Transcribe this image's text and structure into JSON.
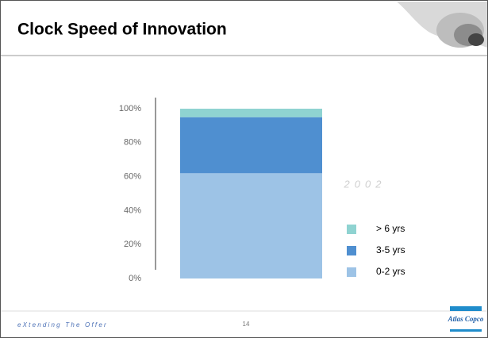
{
  "chart_data": {
    "type": "bar",
    "stacked": true,
    "title": "Clock Speed of Innovation",
    "annotation": "2002",
    "categories": [
      null
    ],
    "series": [
      {
        "name": "0-2 yrs",
        "color": "#9dc3e6",
        "values": [
          62
        ]
      },
      {
        "name": "3-5 yrs",
        "color": "#4f8fd0",
        "values": [
          33
        ]
      },
      {
        "name": "> 6 yrs",
        "color": "#8fd3d1",
        "values": [
          5
        ]
      }
    ],
    "ylim": [
      0,
      100
    ],
    "yticks": [
      {
        "value": 0,
        "label": "0%"
      },
      {
        "value": 20,
        "label": "20%"
      },
      {
        "value": 40,
        "label": "40%"
      },
      {
        "value": 60,
        "label": "60%"
      },
      {
        "value": 80,
        "label": "80%"
      },
      {
        "value": 100,
        "label": "100%"
      }
    ],
    "grid": false,
    "legend": "right"
  },
  "footer": {
    "tagline": "eXtending The Offer",
    "page": "14",
    "logo": "Atlas Copco"
  }
}
